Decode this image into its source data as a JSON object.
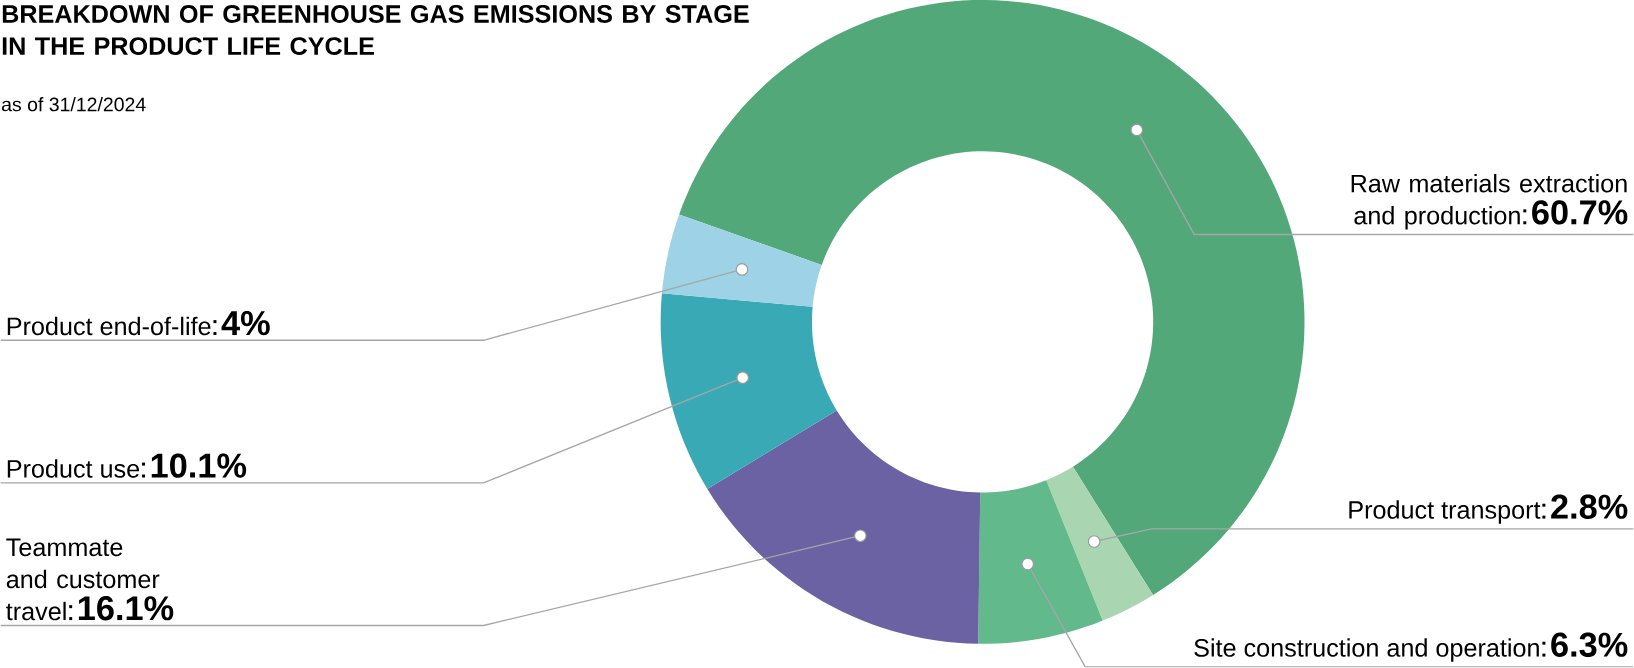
{
  "chart_data": {
    "type": "donut",
    "title": "BREAKDOWN OF GREENHOUSE GAS EMISSIONS BY STAGE IN THE PRODUCT LIFE CYCLE",
    "subtitle": "as of 31/12/2024",
    "categories": [
      "Raw materials extraction and production",
      "Product transport",
      "Site construction and operation",
      "Teammate and customer travel",
      "Product use",
      "Product end-of-life"
    ],
    "values": [
      60.7,
      2.8,
      6.3,
      16.1,
      10.1,
      4
    ],
    "value_labels": [
      "60.7%",
      "2.8%",
      "6.3%",
      "16.1%",
      "10.1%",
      "4%"
    ],
    "colors": [
      "#52a878",
      "#a9d6b1",
      "#62b98c",
      "#6b62a3",
      "#3aa9b6",
      "#9ed2e6"
    ]
  }
}
